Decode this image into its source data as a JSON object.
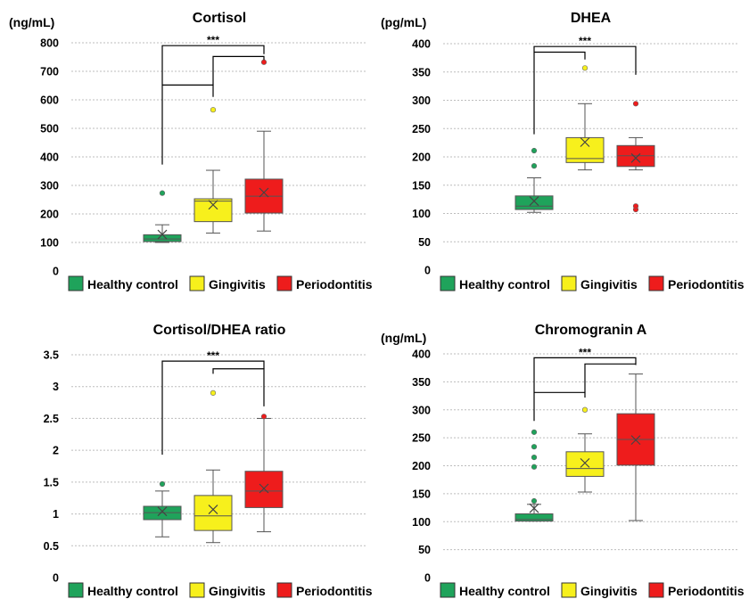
{
  "chart_data": [
    {
      "type": "box",
      "title": "Cortisol",
      "ylabel": "(ng/mL)",
      "ylim": [
        0,
        800
      ],
      "yticks": [
        0,
        100,
        200,
        300,
        400,
        500,
        600,
        700,
        800
      ],
      "groups": [
        {
          "name": "Healthy control",
          "color": "#1fa35b",
          "whisker_low": 100,
          "q1": 103,
          "median": 112,
          "q3": 127,
          "whisker_high": 162,
          "mean": 128,
          "outliers": [
            273
          ]
        },
        {
          "name": "Gingivitis",
          "color": "#f7f01c",
          "whisker_low": 133,
          "q1": 173,
          "median": 245,
          "q3": 253,
          "whisker_high": 353,
          "mean": 232,
          "outliers": [
            565
          ]
        },
        {
          "name": "Periodontitis",
          "color": "#ee1c1c",
          "whisker_low": 140,
          "q1": 203,
          "median": 262,
          "q3": 322,
          "whisker_high": 490,
          "mean": 275,
          "outliers": [
            732
          ]
        }
      ],
      "significance": "***",
      "brackets": [
        {
          "from": 0,
          "to": 2,
          "level": 790,
          "from_low": 373,
          "to_low": 760
        },
        {
          "from": 0,
          "to": 1,
          "level": 652,
          "from_low": 652,
          "to_low": 610
        },
        {
          "from": 1,
          "to": 2,
          "level": 752,
          "from_low": 652,
          "to_low": 740
        }
      ]
    },
    {
      "type": "box",
      "title": "DHEA",
      "ylabel": "(pg/mL)",
      "ylim": [
        0,
        400
      ],
      "yticks": [
        0,
        50,
        100,
        150,
        200,
        250,
        300,
        350,
        400
      ],
      "groups": [
        {
          "name": "Healthy control",
          "color": "#1fa35b",
          "whisker_low": 102,
          "q1": 107,
          "median": 113,
          "q3": 131,
          "whisker_high": 163,
          "mean": 122,
          "outliers": [
            184,
            211
          ]
        },
        {
          "name": "Gingivitis",
          "color": "#f7f01c",
          "whisker_low": 177,
          "q1": 190,
          "median": 197,
          "q3": 234,
          "whisker_high": 294,
          "mean": 226,
          "outliers": [
            357
          ]
        },
        {
          "name": "Periodontitis",
          "color": "#ee1c1c",
          "whisker_low": 177,
          "q1": 183,
          "median": 202,
          "q3": 220,
          "whisker_high": 234,
          "mean": 198,
          "outliers": [
            107,
            113,
            294
          ]
        }
      ],
      "significance": "***",
      "brackets": [
        {
          "from": 0,
          "to": 2,
          "level": 395,
          "from_low": 240,
          "to_low": 345
        },
        {
          "from": 0,
          "to": 1,
          "level": 385,
          "from_low": 385,
          "to_low": 372
        }
      ]
    },
    {
      "type": "box",
      "title": "Cortisol/DHEA ratio",
      "ylabel": "",
      "ylim": [
        0,
        3.5
      ],
      "yticks": [
        0,
        0.5,
        1,
        1.5,
        2,
        2.5,
        3,
        3.5
      ],
      "ytick_labels": [
        "0",
        "0.5",
        "1",
        "1.5",
        "2",
        "2.5",
        "3",
        "3.5"
      ],
      "groups": [
        {
          "name": "Healthy control",
          "color": "#1fa35b",
          "whisker_low": 0.64,
          "q1": 0.91,
          "median": 1.02,
          "q3": 1.12,
          "whisker_high": 1.36,
          "mean": 1.04,
          "outliers": [
            1.47
          ]
        },
        {
          "name": "Gingivitis",
          "color": "#f7f01c",
          "whisker_low": 0.55,
          "q1": 0.74,
          "median": 0.97,
          "q3": 1.29,
          "whisker_high": 1.69,
          "mean": 1.07,
          "outliers": [
            2.9
          ]
        },
        {
          "name": "Periodontitis",
          "color": "#ee1c1c",
          "whisker_low": 0.72,
          "q1": 1.1,
          "median": 1.36,
          "q3": 1.67,
          "whisker_high": 2.5,
          "mean": 1.4,
          "outliers": [
            2.53
          ]
        }
      ],
      "significance": "***",
      "brackets": [
        {
          "from": 0,
          "to": 2,
          "level": 3.4,
          "from_low": 1.93,
          "to_low": 3.28
        },
        {
          "from": 1,
          "to": 2,
          "level": 3.28,
          "from_low": 3.2,
          "to_low": 2.69
        }
      ]
    },
    {
      "type": "box",
      "title": "Chromogranin A",
      "ylabel": "(ng/mL)",
      "ylim": [
        0,
        400
      ],
      "yticks": [
        0,
        50,
        100,
        150,
        200,
        250,
        300,
        350,
        400
      ],
      "groups": [
        {
          "name": "Healthy control",
          "color": "#1fa35b",
          "whisker_low": 101,
          "q1": 101,
          "median": 104,
          "q3": 114,
          "whisker_high": 131,
          "mean": 124,
          "outliers": [
            137,
            198,
            215,
            234,
            260
          ]
        },
        {
          "name": "Gingivitis",
          "color": "#f7f01c",
          "whisker_low": 153,
          "q1": 181,
          "median": 195,
          "q3": 225,
          "whisker_high": 257,
          "mean": 205,
          "outliers": [
            300
          ]
        },
        {
          "name": "Periodontitis",
          "color": "#ee1c1c",
          "whisker_low": 102,
          "q1": 201,
          "median": 247,
          "q3": 293,
          "whisker_high": 364,
          "mean": 246,
          "outliers": []
        }
      ],
      "significance": "***",
      "brackets": [
        {
          "from": 0,
          "to": 2,
          "level": 393,
          "from_low": 280,
          "to_low": 380
        },
        {
          "from": 0,
          "to": 1,
          "level": 331,
          "from_low": 331,
          "to_low": 322
        },
        {
          "from": 1,
          "to": 2,
          "level": 382,
          "from_low": 331,
          "to_low": 382
        }
      ]
    }
  ],
  "legend": [
    {
      "label": "Healthy control",
      "color": "#1fa35b"
    },
    {
      "label": "Gingivitis",
      "color": "#f7f01c"
    },
    {
      "label": "Periodontitis",
      "color": "#ee1c1c"
    }
  ]
}
